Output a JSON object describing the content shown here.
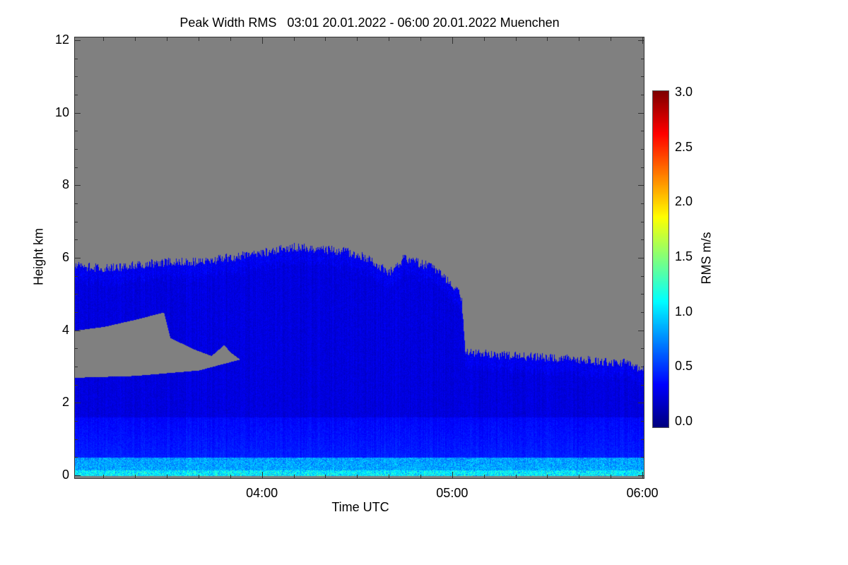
{
  "chart_data": {
    "type": "heatmap",
    "title": "Peak Width RMS   03:01 20.01.2022 - 06:00 20.01.2022 Muenchen",
    "xlabel": "Time UTC",
    "ylabel": "Height km",
    "xlim_minutes_after_0300": [
      1,
      180
    ],
    "ylim": [
      0,
      12
    ],
    "x_ticks": [
      {
        "label": "04:00",
        "min": 60
      },
      {
        "label": "05:00",
        "min": 120
      },
      {
        "label": "06:00",
        "min": 180
      }
    ],
    "y_ticks": [
      "0",
      "2",
      "4",
      "6",
      "8",
      "10",
      "12"
    ],
    "colorbar": {
      "label": "RMS m/s",
      "range": [
        0.0,
        3.0
      ],
      "ticks": [
        "0.0",
        "0.5",
        "1.0",
        "1.5",
        "2.0",
        "2.5",
        "3.0"
      ],
      "colormap": "jet"
    },
    "missing_color": "#808080",
    "echo_top_km": [
      [
        1,
        5.8
      ],
      [
        10,
        5.7
      ],
      [
        20,
        5.8
      ],
      [
        30,
        5.9
      ],
      [
        40,
        5.9
      ],
      [
        57,
        6.1
      ],
      [
        70,
        6.3
      ],
      [
        85,
        6.2
      ],
      [
        93,
        6.0
      ],
      [
        100,
        5.6
      ],
      [
        105,
        6.0
      ],
      [
        115,
        5.7
      ],
      [
        122,
        5.1
      ],
      [
        123,
        4.8
      ],
      [
        124,
        3.4
      ],
      [
        140,
        3.3
      ],
      [
        160,
        3.2
      ],
      [
        175,
        3.1
      ],
      [
        180,
        2.9
      ]
    ],
    "gap_top_km": [
      [
        1,
        4.0
      ],
      [
        10,
        4.1
      ],
      [
        20,
        4.3
      ],
      [
        29,
        4.5
      ],
      [
        31,
        3.8
      ],
      [
        38,
        3.5
      ],
      [
        44,
        3.3
      ],
      [
        48,
        3.6
      ],
      [
        50,
        3.4
      ],
      [
        53,
        3.2
      ]
    ],
    "gap_bottom_km": [
      [
        1,
        2.7
      ],
      [
        20,
        2.75
      ],
      [
        40,
        2.9
      ],
      [
        53,
        3.2
      ]
    ]
  }
}
